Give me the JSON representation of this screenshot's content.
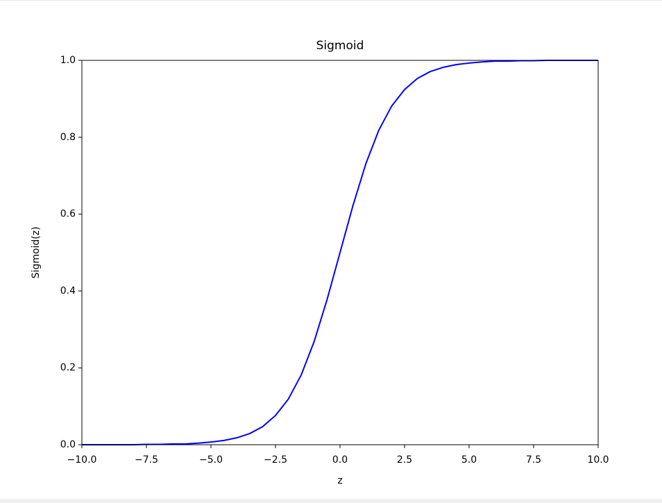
{
  "chart_data": {
    "type": "line",
    "title": "Sigmoid",
    "x_label": "z",
    "y_label": "Sigmoid(z)",
    "x": [
      -10,
      -9.5,
      -9,
      -8.5,
      -8,
      -7.5,
      -7,
      -6.5,
      -6,
      -5.5,
      -5,
      -4.5,
      -4,
      -3.5,
      -3,
      -2.5,
      -2,
      -1.5,
      -1,
      -0.5,
      0,
      0.5,
      1,
      1.5,
      2,
      2.5,
      3,
      3.5,
      4,
      4.5,
      5,
      5.5,
      6,
      6.5,
      7,
      7.5,
      8,
      8.5,
      9,
      9.5,
      10
    ],
    "values": [
      0.0,
      0.0,
      0.0,
      0.0,
      0.0,
      0.001,
      0.001,
      0.002,
      0.002,
      0.004,
      0.007,
      0.011,
      0.018,
      0.029,
      0.047,
      0.076,
      0.119,
      0.182,
      0.269,
      0.378,
      0.5,
      0.622,
      0.731,
      0.818,
      0.881,
      0.924,
      0.953,
      0.971,
      0.982,
      0.989,
      0.993,
      0.996,
      0.998,
      0.998,
      0.999,
      0.999,
      1.0,
      1.0,
      1.0,
      1.0,
      1.0
    ],
    "color": "#0000ff",
    "xlim": [
      -10,
      10
    ],
    "xticks": [
      {
        "value": -10,
        "label": "−10.0"
      },
      {
        "value": -7.5,
        "label": "−7.5"
      },
      {
        "value": -5,
        "label": "−5.0"
      },
      {
        "value": -2.5,
        "label": "−2.5"
      },
      {
        "value": 0,
        "label": "0.0"
      },
      {
        "value": 2.5,
        "label": "2.5"
      },
      {
        "value": 5,
        "label": "5.0"
      },
      {
        "value": 7.5,
        "label": "7.5"
      },
      {
        "value": 10,
        "label": "10.0"
      }
    ],
    "ylim": [
      0,
      1
    ],
    "yticks": [
      {
        "value": 0,
        "label": "0.0"
      },
      0.2,
      0.4,
      0.6,
      0.8,
      {
        "value": 1,
        "label": "1.0"
      }
    ],
    "grid": false
  }
}
